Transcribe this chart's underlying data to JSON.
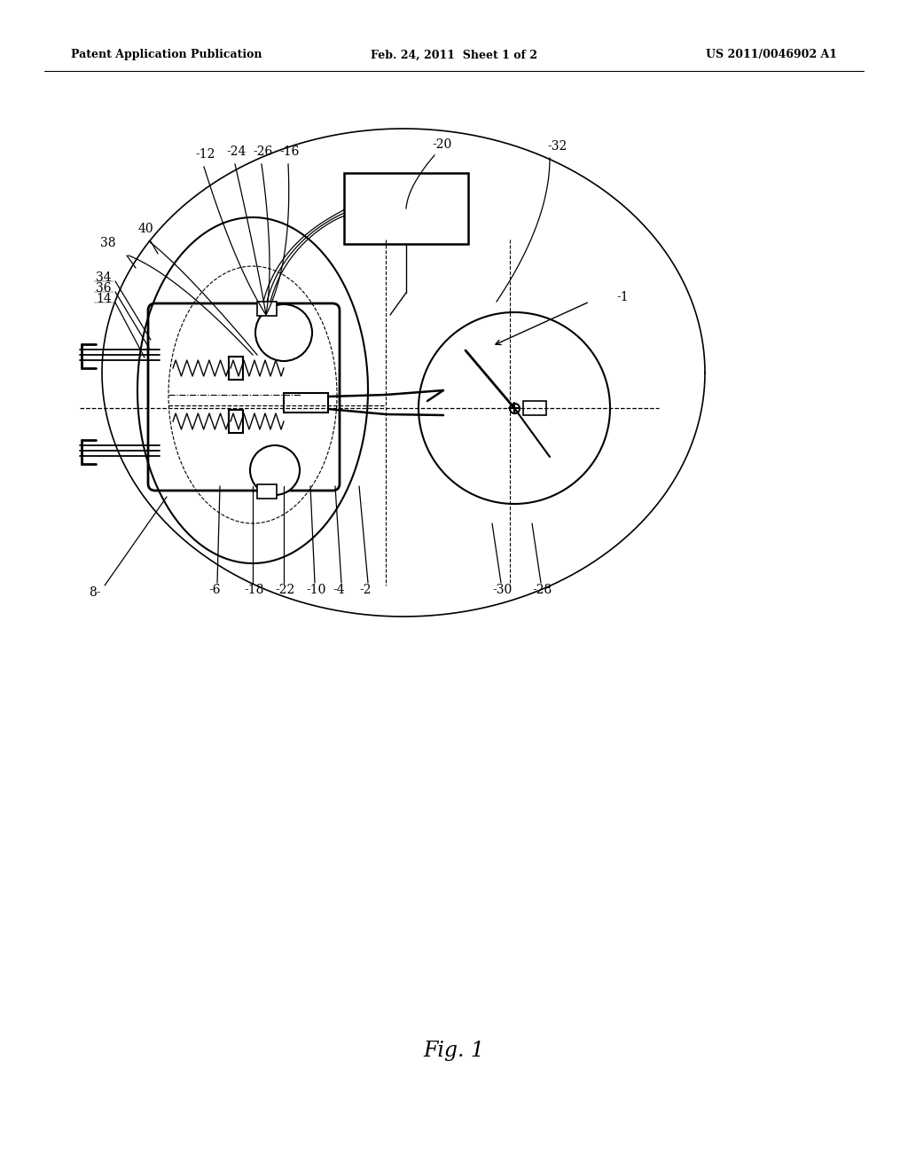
{
  "title_left": "Patent Application Publication",
  "title_center": "Feb. 24, 2011  Sheet 1 of 2",
  "title_right": "US 2011/0046902 A1",
  "fig_label": "Fig. 1",
  "background_color": "#ffffff",
  "line_color": "#000000",
  "header_fontsize": 9,
  "label_fontsize": 10,
  "fig_label_fontsize": 17
}
